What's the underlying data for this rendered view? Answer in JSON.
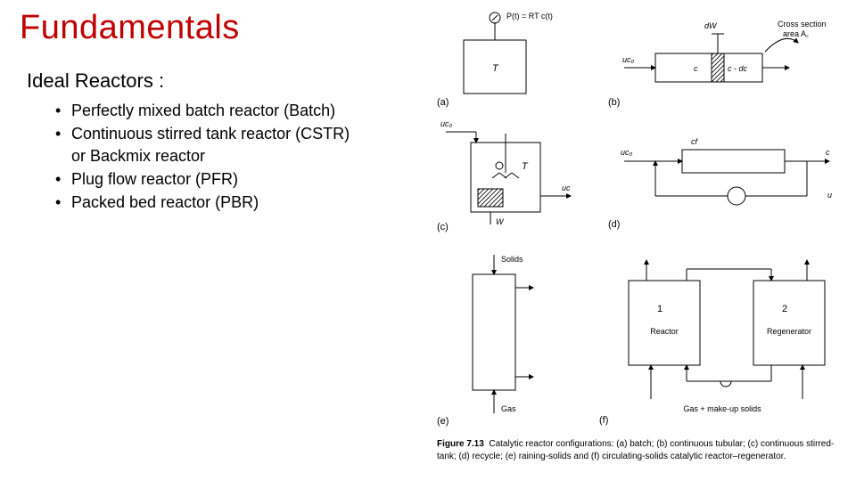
{
  "title": {
    "text": "Fundamentals",
    "color": "#c00000",
    "fontsize": 38
  },
  "subtitle": {
    "text": "Ideal Reactors :",
    "fontsize": 22
  },
  "bullets": {
    "items": [
      "Perfectly mixed batch reactor (Batch)",
      "Continuous stirred tank reactor (CSTR) or Backmix reactor",
      "Plug flow reactor (PFR)",
      "Packed bed reactor (PBR)"
    ],
    "fontsize": 18
  },
  "figure": {
    "stroke_color": "#000000",
    "background": "#ffffff",
    "panels": {
      "a": {
        "label": "(a)",
        "tank_label": "T",
        "gauge_label": "P(t) = RT c(t)"
      },
      "b": {
        "label": "(b)",
        "in": "uc₀",
        "c_label": "c",
        "dc_label": "c - dc",
        "dw": "dW",
        "cross": "Cross section",
        "area": "area A꜀"
      },
      "c": {
        "label": "(c)",
        "in": "uc₀",
        "out_side": "uc",
        "T": "T",
        "hatch_w": "W"
      },
      "d": {
        "label": "(d)",
        "in": "uc₀",
        "cf": "cf",
        "out_c": "c",
        "out_u": "u"
      },
      "e": {
        "label": "(e)",
        "top": "Solids",
        "bottom": "Gas"
      },
      "f": {
        "label": "(f)",
        "box1a": "1",
        "box1b": "Reactor",
        "box2a": "2",
        "box2b": "Regenerator",
        "bottom": "Gas + make-up solids"
      }
    },
    "caption": "Figure 7.13   Catalytic reactor configurations: (a) batch; (b) continuous tubular; (c) continuous stirred-tank; (d) recycle; (e) raining-solids and (f) circulating-solids catalytic reactor–regenerator."
  },
  "colors": {
    "title": "#c00000",
    "text": "#000000",
    "bg": "#ffffff"
  }
}
